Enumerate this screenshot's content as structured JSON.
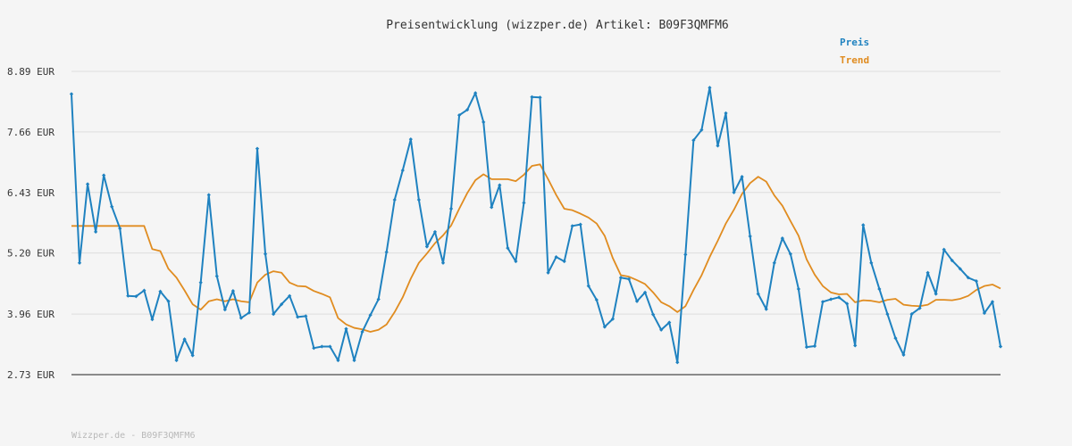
{
  "chart_data": {
    "type": "line",
    "title": "Preisentwicklung (wizzper.de) Artikel: B09F3QMFM6",
    "ylim": [
      2.73,
      8.89
    ],
    "yticks": [
      "8.89 EUR",
      "7.66 EUR",
      "6.43 EUR",
      "5.20 EUR",
      "3.96 EUR",
      "2.73 EUR"
    ],
    "ytick_values": [
      8.89,
      7.66,
      6.43,
      5.2,
      3.96,
      2.73
    ],
    "grid": true,
    "legend_position": "top-right",
    "series": [
      {
        "name": "Preis",
        "color": "#1f82c0",
        "values": [
          8.43,
          5.0,
          6.6,
          5.63,
          6.78,
          6.14,
          5.7,
          4.33,
          4.32,
          4.44,
          3.85,
          4.42,
          4.22,
          3.02,
          3.45,
          3.12,
          4.6,
          6.38,
          4.73,
          4.05,
          4.43,
          3.88,
          3.99,
          7.32,
          5.18,
          3.96,
          4.16,
          4.33,
          3.9,
          3.92,
          3.27,
          3.3,
          3.3,
          3.02,
          3.66,
          3.02,
          3.6,
          3.94,
          4.26,
          5.22,
          6.28,
          6.88,
          7.51,
          6.28,
          5.33,
          5.63,
          5.0,
          6.1,
          8.0,
          8.11,
          8.45,
          7.86,
          6.13,
          6.58,
          5.3,
          5.03,
          6.22,
          8.37,
          8.36,
          4.8,
          5.12,
          5.03,
          5.75,
          5.78,
          4.53,
          4.25,
          3.7,
          3.86,
          4.7,
          4.67,
          4.22,
          4.4,
          3.95,
          3.64,
          3.79,
          2.98,
          5.17,
          7.49,
          7.7,
          8.56,
          7.38,
          8.04,
          6.43,
          6.75,
          5.54,
          4.37,
          4.06,
          5.0,
          5.5,
          5.18,
          4.47,
          3.29,
          3.31,
          4.21,
          4.26,
          4.3,
          4.17,
          3.32,
          5.77,
          5.0,
          4.47,
          3.96,
          3.47,
          3.13,
          3.96,
          4.08,
          4.8,
          4.37,
          5.27,
          5.05,
          4.88,
          4.7,
          4.63,
          3.98,
          4.21,
          3.3
        ]
      },
      {
        "name": "Trend",
        "color": "#e08c20",
        "values": [
          5.75,
          5.75,
          5.75,
          5.75,
          5.75,
          5.75,
          5.75,
          5.75,
          5.75,
          5.75,
          5.28,
          5.24,
          4.88,
          4.7,
          4.44,
          4.16,
          4.05,
          4.22,
          4.26,
          4.22,
          4.26,
          4.22,
          4.2,
          4.6,
          4.76,
          4.83,
          4.8,
          4.6,
          4.53,
          4.52,
          4.43,
          4.37,
          4.3,
          3.88,
          3.75,
          3.68,
          3.65,
          3.6,
          3.64,
          3.75,
          4.0,
          4.3,
          4.68,
          5.0,
          5.19,
          5.4,
          5.56,
          5.76,
          6.1,
          6.42,
          6.68,
          6.8,
          6.7,
          6.7,
          6.7,
          6.66,
          6.79,
          6.97,
          7.0,
          6.7,
          6.38,
          6.1,
          6.07,
          6.0,
          5.92,
          5.8,
          5.55,
          5.1,
          4.75,
          4.72,
          4.65,
          4.57,
          4.4,
          4.2,
          4.12,
          4.0,
          4.12,
          4.45,
          4.75,
          5.12,
          5.45,
          5.8,
          6.08,
          6.4,
          6.62,
          6.75,
          6.65,
          6.37,
          6.16,
          5.85,
          5.55,
          5.07,
          4.76,
          4.53,
          4.4,
          4.36,
          4.37,
          4.2,
          4.24,
          4.23,
          4.2,
          4.25,
          4.27,
          4.15,
          4.13,
          4.12,
          4.15,
          4.25,
          4.25,
          4.24,
          4.27,
          4.33,
          4.45,
          4.53,
          4.56,
          4.48
        ]
      }
    ]
  },
  "footer": {
    "text": "Wizzper.de - B09F3QMFM6"
  }
}
